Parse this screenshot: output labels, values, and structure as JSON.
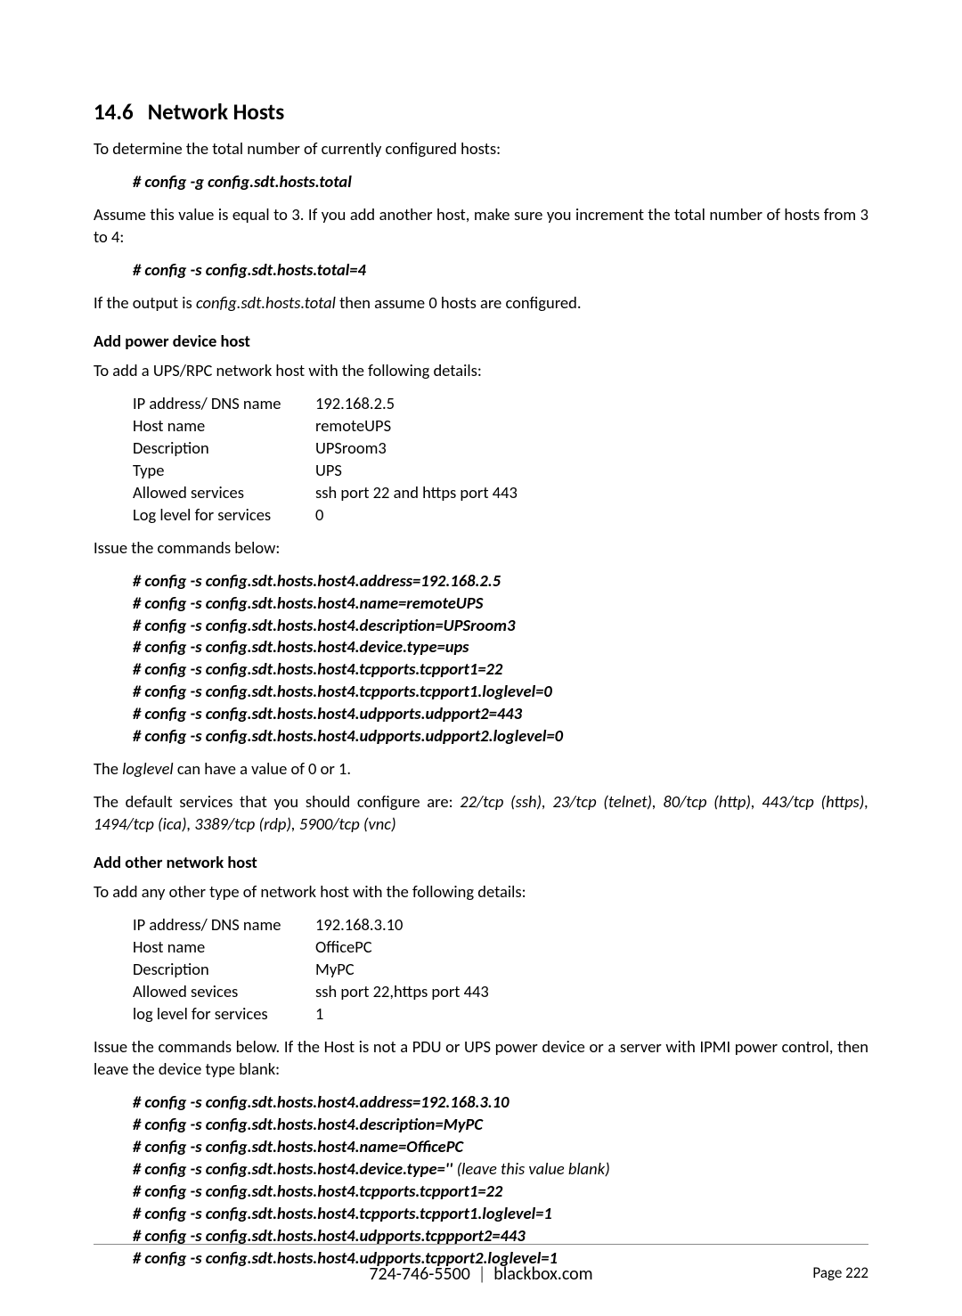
{
  "heading": {
    "number": "14.6",
    "title": "Network Hosts"
  },
  "intro1": "To determine the total number of currently configured hosts:",
  "cmd1": "# config -g config.sdt.hosts.total",
  "intro2": "Assume this value is equal to 3. If you add another host, make sure you increment the total number of hosts from 3 to 4:",
  "cmd2": "# config -s config.sdt.hosts.total=4",
  "intro3_a": "If the output is ",
  "intro3_i": "config.sdt.hosts.total",
  "intro3_b": " then assume 0 hosts are configured.",
  "sub1": "Add power device host",
  "sub1_intro": "To add a UPS/RPC network host with the following details:",
  "kv1": [
    {
      "key": "IP address/ DNS name",
      "val": "192.168.2.5"
    },
    {
      "key": "Host name",
      "val": "remoteUPS"
    },
    {
      "key": "Description",
      "val": "UPSroom3"
    },
    {
      "key": "Type",
      "val": "UPS"
    },
    {
      "key": "Allowed services",
      "val": "ssh port 22 and https port 443"
    },
    {
      "key": "Log level for services",
      "val": "0"
    }
  ],
  "issue1": "Issue the commands below:",
  "block1": [
    "# config -s config.sdt.hosts.host4.address=192.168.2.5",
    "# config -s config.sdt.hosts.host4.name=remoteUPS",
    "# config -s config.sdt.hosts.host4.description=UPSroom3",
    "# config -s config.sdt.hosts.host4.device.type=ups",
    "# config -s config.sdt.hosts.host4.tcpports.tcpport1=22",
    "# config -s config.sdt.hosts.host4.tcpports.tcpport1.loglevel=0",
    "# config -s config.sdt.hosts.host4.udpports.udpport2=443",
    "# config -s config.sdt.hosts.host4.udpports.udpport2.loglevel=0"
  ],
  "loglevel_a": "The ",
  "loglevel_i": "loglevel",
  "loglevel_b": " can have a value of 0 or 1.",
  "services_a": "The default services that you should configure are: ",
  "services_i": "22/tcp (ssh), 23/tcp (telnet), 80/tcp (http), 443/tcp (https), 1494/tcp (ica), 3389/tcp (rdp), 5900/tcp (vnc)",
  "sub2": "Add other network host",
  "sub2_intro": "To add any other type of network host with the following details:",
  "kv2": [
    {
      "key": "IP address/ DNS name",
      "val": "192.168.3.10"
    },
    {
      "key": "Host name",
      "val": "OfficePC"
    },
    {
      "key": "Description",
      "val": "MyPC"
    },
    {
      "key": "Allowed sevices",
      "val": "ssh port 22,https port 443"
    },
    {
      "key": "log level for services",
      "val": "1"
    }
  ],
  "issue2": "Issue the commands below. If the Host is not a PDU or UPS power device or a server with IPMI power control, then leave the device type blank:",
  "block2": [
    {
      "cmd": "# config -s config.sdt.hosts.host4.address=192.168.3.10",
      "annot": ""
    },
    {
      "cmd": "# config -s config.sdt.hosts.host4.description=MyPC",
      "annot": ""
    },
    {
      "cmd": "# config -s config.sdt.hosts.host4.name=OfficePC",
      "annot": ""
    },
    {
      "cmd": "# config -s config.sdt.hosts.host4.device.type=''",
      "annot": "  (leave this value blank)"
    },
    {
      "cmd": "# config -s config.sdt.hosts.host4.tcpports.tcpport1=22",
      "annot": ""
    },
    {
      "cmd": "# config -s config.sdt.hosts.host4.tcpports.tcpport1.loglevel=1",
      "annot": ""
    },
    {
      "cmd": "# config -s config.sdt.hosts.host4.udpports.tcppport2=443",
      "annot": ""
    },
    {
      "cmd": "# config -s config.sdt.hosts.host4.udpports.tcpport2.loglevel=1",
      "annot": ""
    }
  ],
  "footer": {
    "phone": "724-746-5500",
    "site": "blackbox.com",
    "page_label": "Page",
    "page_num": "222"
  }
}
